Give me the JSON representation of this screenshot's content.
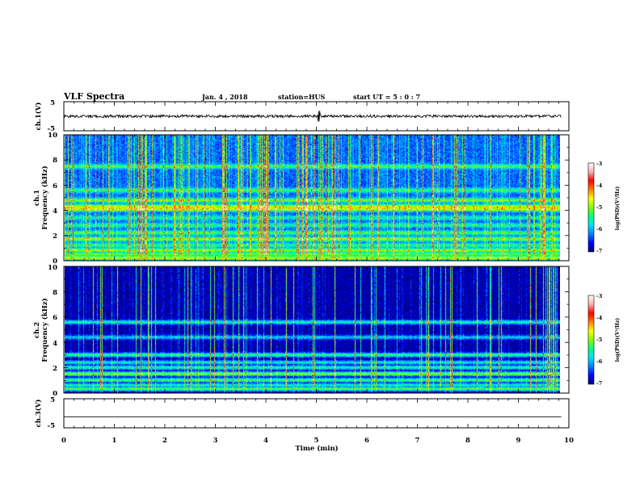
{
  "header": {
    "title": "VLF Spectra",
    "date": "Jan. 4 , 2018",
    "station": "station=HUS",
    "start": "start UT = 5 : 0 : 7"
  },
  "colors": {
    "cmap": [
      "#000080",
      "#0000ff",
      "#0080ff",
      "#00e0ff",
      "#00ff80",
      "#80ff00",
      "#ffff00",
      "#ff8000",
      "#ff0000",
      "#ffb0b0",
      "#ffffff"
    ],
    "background_spectrogram": "#000000",
    "trace": "#000000"
  },
  "chart_data": [
    {
      "type": "line",
      "panel": "ch1-waveform",
      "ylabel": "ch.1(V)",
      "ylim": [
        -5,
        5
      ],
      "yticks": [
        5,
        -5
      ],
      "xlim": [
        0,
        10
      ],
      "x": [
        0,
        9.85
      ],
      "baseline": 0,
      "spikes": [
        {
          "x": 5.05,
          "y": 1.8
        }
      ],
      "description_level": "noisy trace around 0 V"
    },
    {
      "type": "heatmap",
      "panel": "ch1-spectrogram",
      "ylabel_line1": "ch.1",
      "ylabel_line2": "Frequency (kHz)",
      "xlim": [
        0,
        10
      ],
      "ylim": [
        0,
        10
      ],
      "yticks": [
        "0",
        "2",
        "4",
        "6",
        "8",
        "10"
      ],
      "x_extent": [
        0,
        9.85
      ],
      "colorbar": {
        "label": "log(PSD)(V²/Hz)",
        "range": [
          -7,
          -3
        ],
        "ticks": [
          "-3",
          "-4",
          "-5",
          "-6",
          "-7"
        ]
      },
      "background_level": -6.3,
      "bands": [
        {
          "freq_khz": 0.2,
          "level": -4.8
        },
        {
          "freq_khz": 0.5,
          "level": -5.2
        },
        {
          "freq_khz": 0.8,
          "level": -5.0
        },
        {
          "freq_khz": 1.2,
          "level": -5.4
        },
        {
          "freq_khz": 1.7,
          "level": -5.0
        },
        {
          "freq_khz": 2.2,
          "level": -5.3
        },
        {
          "freq_khz": 2.8,
          "level": -5.5
        },
        {
          "freq_khz": 3.4,
          "level": -5.6
        },
        {
          "freq_khz": 4.1,
          "level": -4.6
        },
        {
          "freq_khz": 4.3,
          "level": -4.8
        },
        {
          "freq_khz": 4.8,
          "level": -5.1
        },
        {
          "freq_khz": 5.6,
          "level": -5.4
        },
        {
          "freq_khz": 7.5,
          "level": -5.3
        }
      ],
      "sferics_density": "high"
    },
    {
      "type": "heatmap",
      "panel": "ch2-spectrogram",
      "ylabel_line1": "ch.2",
      "ylabel_line2": "Frequency (kHz)",
      "xlim": [
        0,
        10
      ],
      "ylim": [
        0,
        10
      ],
      "yticks": [
        "0",
        "2",
        "4",
        "6",
        "8",
        "10"
      ],
      "x_extent": [
        0,
        9.85
      ],
      "colorbar": {
        "label": "log(PSD)(V²/Hz)",
        "range": [
          -7,
          -3
        ],
        "ticks": [
          "-3",
          "-4",
          "-5",
          "-6",
          "-7"
        ]
      },
      "background_level": -6.9,
      "bands": [
        {
          "freq_khz": 0.3,
          "level": -5.2
        },
        {
          "freq_khz": 0.6,
          "level": -5.6
        },
        {
          "freq_khz": 1.0,
          "level": -5.3
        },
        {
          "freq_khz": 1.5,
          "level": -5.0
        },
        {
          "freq_khz": 2.0,
          "level": -5.5
        },
        {
          "freq_khz": 2.4,
          "level": -5.7
        },
        {
          "freq_khz": 3.0,
          "level": -5.4
        },
        {
          "freq_khz": 4.4,
          "level": -5.9
        },
        {
          "freq_khz": 5.6,
          "level": -5.6
        }
      ],
      "sferics_density": "medium"
    },
    {
      "type": "line",
      "panel": "ch3-waveform",
      "ylabel": "ch.3(V)",
      "ylim": [
        -5,
        5
      ],
      "yticks": [
        5,
        -5
      ],
      "xlim": [
        0,
        10
      ],
      "x": [
        0,
        9.85
      ],
      "baseline": -1.2,
      "xlabel": "Time (min)",
      "xticks": [
        "0",
        "1",
        "2",
        "3",
        "4",
        "5",
        "6",
        "7",
        "8",
        "9",
        "10"
      ]
    }
  ]
}
